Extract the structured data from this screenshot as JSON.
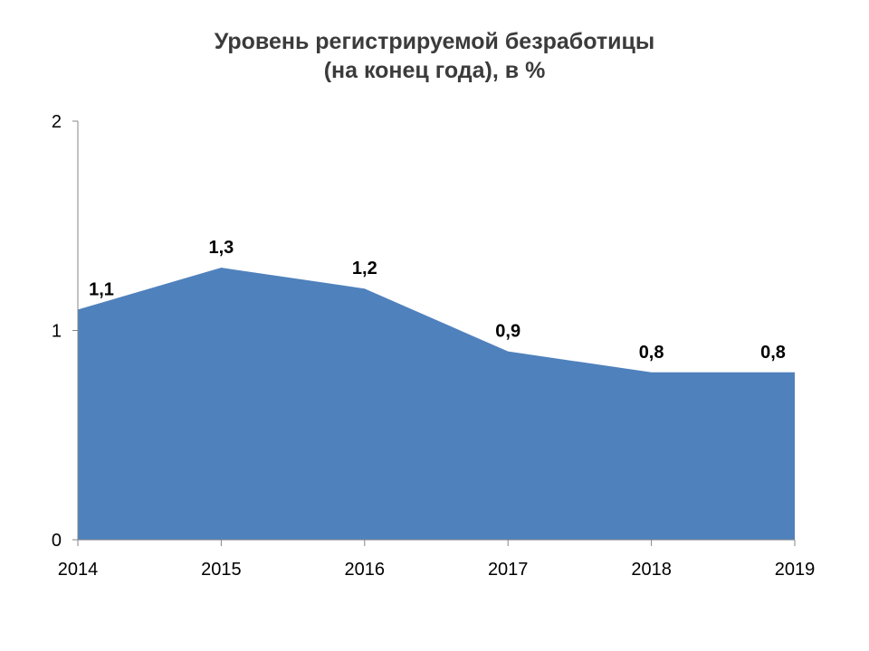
{
  "chart_data": {
    "type": "area",
    "title": "Уровень регистрируемой безработицы",
    "subtitle": "(на конец года), в %",
    "categories": [
      "2014",
      "2015",
      "2016",
      "2017",
      "2018",
      "2019"
    ],
    "series": [
      {
        "values": [
          1.1,
          1.3,
          1.2,
          0.9,
          0.8,
          0.8
        ],
        "data_labels": [
          "1,1",
          "1,3",
          "1,2",
          "0,9",
          "0,8",
          "0,8"
        ]
      }
    ],
    "ylim": [
      0,
      2
    ],
    "yticks": [
      0,
      1,
      2
    ],
    "ytick_labels": [
      "0",
      "1",
      "2"
    ],
    "grid": false,
    "legend": "none",
    "colors": {
      "area": "#4f81bd",
      "axis": "#868686",
      "text": "#000000"
    }
  }
}
